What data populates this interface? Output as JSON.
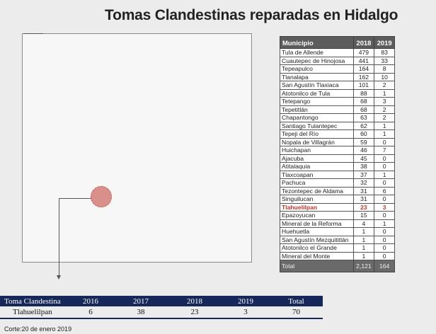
{
  "title": "Tomas Clandestinas reparadas en Hidalgo",
  "colors": {
    "map_marker": "#d9908a",
    "table_header": "#5c5c5c",
    "highlight_text": "#c0392b",
    "toma_header": "#16285a"
  },
  "municipios_table": {
    "headers": {
      "municipio": "Municipio",
      "y2018": "2018",
      "y2019": "2019"
    },
    "rows": [
      {
        "name": "Tula de Allende",
        "v2018": "479",
        "v2019": "83"
      },
      {
        "name": "Cuautepec de Hinojosa",
        "v2018": "441",
        "v2019": "33"
      },
      {
        "name": "Tepeapulco",
        "v2018": "164",
        "v2019": "8"
      },
      {
        "name": "Tlanalapa",
        "v2018": "162",
        "v2019": "10"
      },
      {
        "name": "San Agustín Tlaxiaca",
        "v2018": "101",
        "v2019": "2"
      },
      {
        "name": "Atotonilco de Tula",
        "v2018": "88",
        "v2019": "1"
      },
      {
        "name": "Tetepango",
        "v2018": "68",
        "v2019": "3"
      },
      {
        "name": "Tepetitlán",
        "v2018": "68",
        "v2019": "2"
      },
      {
        "name": "Chapantongo",
        "v2018": "63",
        "v2019": "2"
      },
      {
        "name": "Santiago Tulantepec",
        "v2018": "62",
        "v2019": "1"
      },
      {
        "name": "Tepeji del Río",
        "v2018": "60",
        "v2019": "1"
      },
      {
        "name": "Nopala de Villagrán",
        "v2018": "59",
        "v2019": "0"
      },
      {
        "name": "Huichapan",
        "v2018": "46",
        "v2019": "7"
      },
      {
        "name": "Ajacuba",
        "v2018": "45",
        "v2019": "0"
      },
      {
        "name": "Atitalaquia",
        "v2018": "38",
        "v2019": "0"
      },
      {
        "name": "Tlaxcoapan",
        "v2018": "37",
        "v2019": "1"
      },
      {
        "name": "Pachuca",
        "v2018": "32",
        "v2019": "0"
      },
      {
        "name": "Tezontepec de Aldama",
        "v2018": "31",
        "v2019": "6"
      },
      {
        "name": "Singuilucan",
        "v2018": "31",
        "v2019": "0"
      },
      {
        "name": "Tlahuelilpan",
        "v2018": "23",
        "v2019": "3",
        "highlight": true
      },
      {
        "name": "Epazoyucan",
        "v2018": "15",
        "v2019": "0"
      },
      {
        "name": "Mineral de la Reforma",
        "v2018": "4",
        "v2019": "1"
      },
      {
        "name": "Huehuetla",
        "v2018": "1",
        "v2019": "0"
      },
      {
        "name": "San Agustín Mezquititlán",
        "v2018": "1",
        "v2019": "0"
      },
      {
        "name": "Atotonilco el Grande",
        "v2018": "1",
        "v2019": "0"
      },
      {
        "name": "Mineral del Monte",
        "v2018": "1",
        "v2019": "0"
      }
    ],
    "total": {
      "label": "Total",
      "v2018": "2,121",
      "v2019": "164"
    }
  },
  "toma_table": {
    "headers": [
      "Toma Clandestina",
      "2016",
      "2017",
      "2018",
      "2019",
      "Total"
    ],
    "row": [
      "Tlahuelilpan",
      "6",
      "38",
      "23",
      "3",
      "70"
    ]
  },
  "footnote": "Corte:20 de enero 2019"
}
